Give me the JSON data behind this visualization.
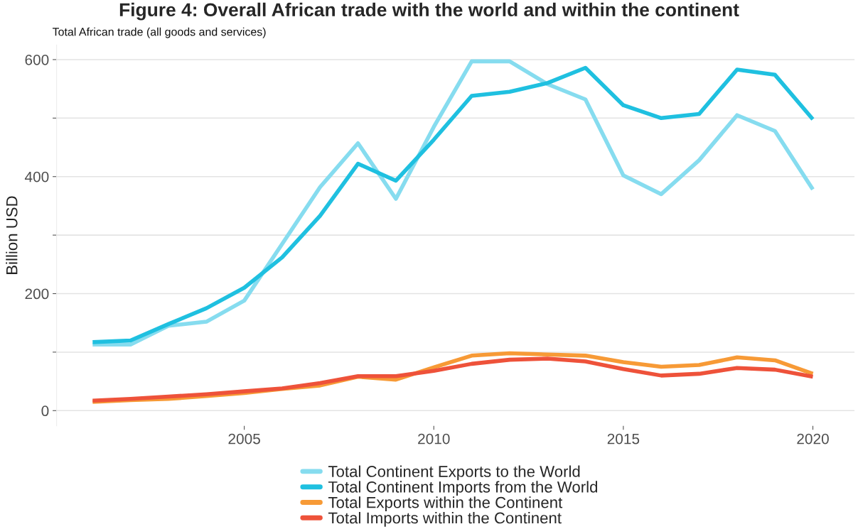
{
  "chart_data": {
    "type": "line",
    "title": "Figure 4: Overall African trade with the world and within the continent",
    "subtitle": "Total African trade (all goods and services)",
    "ylabel": "Billion USD",
    "x": [
      2001,
      2002,
      2003,
      2004,
      2005,
      2006,
      2007,
      2008,
      2009,
      2010,
      2011,
      2012,
      2013,
      2014,
      2015,
      2016,
      2017,
      2018,
      2019,
      2020
    ],
    "series": [
      {
        "name": "Total Continent Exports to the World",
        "color": "#86dcef",
        "values": [
          113,
          113,
          145,
          152,
          188,
          285,
          382,
          457,
          362,
          485,
          597,
          597,
          558,
          532,
          402,
          370,
          428,
          505,
          478,
          378
        ]
      },
      {
        "name": "Total Continent Imports from the World",
        "color": "#1fc0e0",
        "values": [
          117,
          120,
          148,
          175,
          210,
          262,
          333,
          422,
          393,
          463,
          538,
          545,
          560,
          586,
          522,
          500,
          507,
          583,
          574,
          498
        ]
      },
      {
        "name": "Total Exports within the Continent",
        "color": "#f79a36",
        "values": [
          15,
          18,
          20,
          25,
          30,
          37,
          43,
          58,
          53,
          74,
          94,
          98,
          96,
          94,
          83,
          75,
          78,
          91,
          86,
          63
        ]
      },
      {
        "name": "Total Imports within the Continent",
        "color": "#ee523a",
        "values": [
          17,
          20,
          24,
          28,
          33,
          38,
          47,
          59,
          59,
          68,
          80,
          87,
          89,
          84,
          71,
          60,
          63,
          73,
          70,
          58
        ]
      }
    ],
    "xlim": [
      2000.05,
      2021.1
    ],
    "xticks": [
      2005,
      2010,
      2015,
      2020
    ],
    "ylim": [
      -26,
      625
    ],
    "yticks": [
      0,
      {
        "value": 100,
        "label": null
      },
      200,
      {
        "value": 300,
        "label": null
      },
      400,
      {
        "value": 500,
        "label": null
      },
      600
    ],
    "grid": "y",
    "legend": "bottom",
    "line_style": "solid",
    "marker": "none"
  }
}
